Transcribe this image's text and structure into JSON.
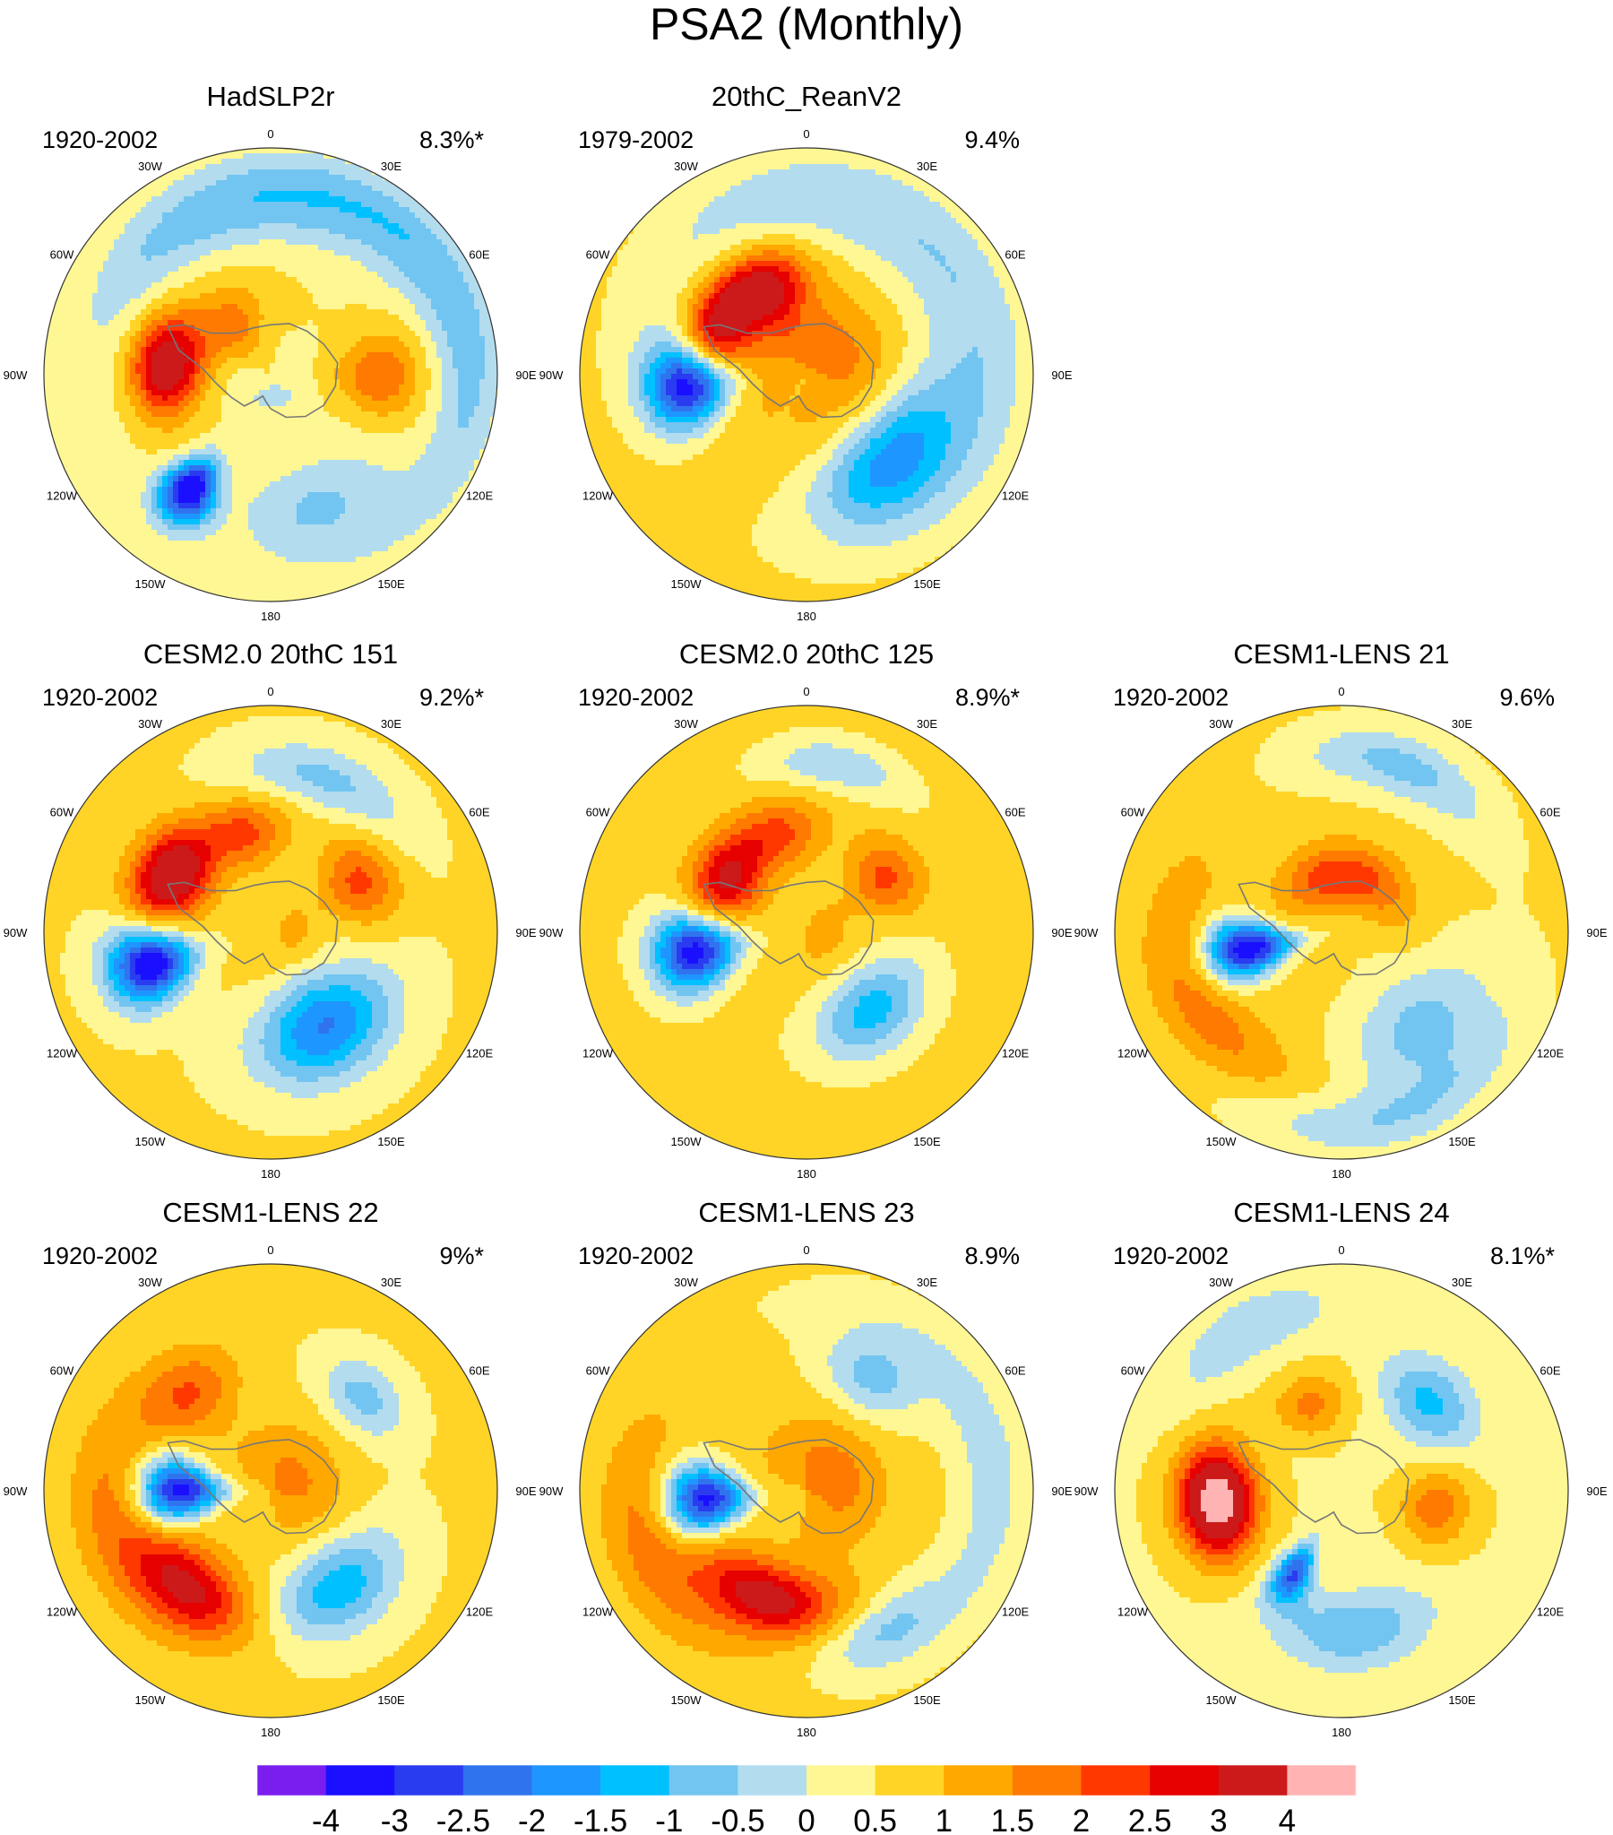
{
  "figure_title": "PSA2 (Monthly)",
  "colors": {
    "background": "#ffffff",
    "coast": "#777777",
    "border": "#333333",
    "palette": [
      "#7a1eef",
      "#1a10ff",
      "#2a3cf0",
      "#2f74ee",
      "#1e96ff",
      "#00c0ff",
      "#72c5f0",
      "#b3dcef",
      "#fff794",
      "#ffd426",
      "#ffa800",
      "#ff7a00",
      "#ff3800",
      "#e60000",
      "#cc1a1a",
      "#ffb3b3"
    ]
  },
  "longitude_labels": [
    "0",
    "30E",
    "60E",
    "90E",
    "120E",
    "150E",
    "180",
    "150W",
    "120W",
    "90W",
    "60W",
    "30W"
  ],
  "chart_data": {
    "type": "polar contour maps",
    "colorbar": {
      "levels": [
        -4,
        -3,
        -2.5,
        -2,
        -1.5,
        -1,
        -0.5,
        0,
        0.5,
        1,
        1.5,
        2,
        2.5,
        3,
        4
      ],
      "labels": [
        "-4",
        "-3",
        "-2.5",
        "-2",
        "-1.5",
        "-1",
        "-0.5",
        "0",
        "0.5",
        "1",
        "1.5",
        "2",
        "2.5",
        "3",
        "4"
      ]
    },
    "panels": [
      {
        "title": "HadSLP2r",
        "period": "1920-2002",
        "variance": "8.3%*",
        "background": 0.5,
        "blobs": [
          {
            "lon": -145,
            "r": 0.62,
            "amp": -4.2,
            "sa": 0.13,
            "sr": 0.11
          },
          {
            "lon": -40,
            "r": 0.28,
            "amp": 1.3,
            "sa": 0.4,
            "sr": 0.12
          },
          {
            "lon": -85,
            "r": 0.46,
            "amp": 3.2,
            "sa": 0.32,
            "sr": 0.11
          },
          {
            "lon": 90,
            "r": 0.48,
            "amp": 1.5,
            "sa": 0.26,
            "sr": 0.13
          },
          {
            "lon": -10,
            "r": 0.75,
            "amp": -1.3,
            "sa": 0.85,
            "sr": 0.12
          },
          {
            "lon": 70,
            "r": 0.88,
            "amp": -1.2,
            "sa": 0.9,
            "sr": 0.1
          },
          {
            "lon": 160,
            "r": 0.62,
            "amp": -1.1,
            "sa": 0.4,
            "sr": 0.15
          },
          {
            "lon": 175,
            "r": 0.1,
            "amp": -0.6,
            "sa": 1.2,
            "sr": 0.08
          }
        ]
      },
      {
        "title": "20thC_ReanV2",
        "period": "1979-2002",
        "variance": "9.4%",
        "background": 0.9,
        "blobs": [
          {
            "lon": -95,
            "r": 0.52,
            "amp": -4.4,
            "sa": 0.24,
            "sr": 0.13
          },
          {
            "lon": -25,
            "r": 0.42,
            "amp": 2.1,
            "sa": 0.32,
            "sr": 0.12
          },
          {
            "lon": -60,
            "r": 0.44,
            "amp": 2.4,
            "sa": 0.4,
            "sr": 0.1
          },
          {
            "lon": 135,
            "r": 0.52,
            "amp": -2.4,
            "sa": 0.5,
            "sr": 0.15
          },
          {
            "lon": 45,
            "r": 0.78,
            "amp": -1.4,
            "sa": 1.6,
            "sr": 0.18
          },
          {
            "lon": 30,
            "r": 0.15,
            "amp": 0.9,
            "sa": 1.5,
            "sr": 0.14
          }
        ]
      },
      {
        "title": "CESM2.0 20thC 151",
        "period": "1920-2002",
        "variance": "9.2%*",
        "background": 0.55,
        "blobs": [
          {
            "lon": -105,
            "r": 0.55,
            "amp": -4.2,
            "sa": 0.2,
            "sr": 0.13
          },
          {
            "lon": -60,
            "r": 0.5,
            "amp": 3.3,
            "sa": 0.3,
            "sr": 0.12
          },
          {
            "lon": 150,
            "r": 0.48,
            "amp": -2.6,
            "sa": 0.45,
            "sr": 0.16
          },
          {
            "lon": -15,
            "r": 0.45,
            "amp": 1.6,
            "sa": 0.3,
            "sr": 0.11
          },
          {
            "lon": 60,
            "r": 0.45,
            "amp": 1.6,
            "sa": 0.3,
            "sr": 0.12
          },
          {
            "lon": 20,
            "r": 0.72,
            "amp": -1.2,
            "sa": 0.4,
            "sr": 0.1
          },
          {
            "lon": 100,
            "r": 0.1,
            "amp": 0.6,
            "sa": 1.2,
            "sr": 0.08
          }
        ]
      },
      {
        "title": "CESM2.0 20thC 125",
        "period": "1920-2002",
        "variance": "8.9%*",
        "background": 0.65,
        "blobs": [
          {
            "lon": -100,
            "r": 0.5,
            "amp": -4.0,
            "sa": 0.22,
            "sr": 0.13
          },
          {
            "lon": -55,
            "r": 0.42,
            "amp": 2.5,
            "sa": 0.32,
            "sr": 0.11
          },
          {
            "lon": 140,
            "r": 0.45,
            "amp": -1.9,
            "sa": 0.42,
            "sr": 0.13
          },
          {
            "lon": -15,
            "r": 0.45,
            "amp": 1.4,
            "sa": 0.3,
            "sr": 0.11
          },
          {
            "lon": 55,
            "r": 0.42,
            "amp": 1.5,
            "sa": 0.28,
            "sr": 0.11
          },
          {
            "lon": 10,
            "r": 0.75,
            "amp": -1.1,
            "sa": 0.3,
            "sr": 0.08
          },
          {
            "lon": 100,
            "r": 0.05,
            "amp": 0.7,
            "sa": 1.2,
            "sr": 0.1
          }
        ]
      },
      {
        "title": "CESM1-LENS 21",
        "period": "1920-2002",
        "variance": "9.6%",
        "background": 0.6,
        "blobs": [
          {
            "lon": -100,
            "r": 0.42,
            "amp": -4.2,
            "sa": 0.2,
            "sr": 0.14
          },
          {
            "lon": -20,
            "r": 0.25,
            "amp": 1.4,
            "sa": 0.6,
            "sr": 0.1
          },
          {
            "lon": 35,
            "r": 0.25,
            "amp": 1.1,
            "sa": 0.6,
            "sr": 0.1
          },
          {
            "lon": -115,
            "r": 0.7,
            "amp": 1.3,
            "sa": 0.6,
            "sr": 0.13
          },
          {
            "lon": 140,
            "r": 0.55,
            "amp": -1.3,
            "sa": 0.45,
            "sr": 0.18
          },
          {
            "lon": 20,
            "r": 0.78,
            "amp": -1.3,
            "sa": 0.4,
            "sr": 0.1
          },
          {
            "lon": 170,
            "r": 0.85,
            "amp": -1.0,
            "sa": 0.6,
            "sr": 0.1
          }
        ]
      },
      {
        "title": "CESM1-LENS 22",
        "period": "1920-2002",
        "variance": "9%*",
        "background": 0.55,
        "blobs": [
          {
            "lon": -90,
            "r": 0.4,
            "amp": -4.0,
            "sa": 0.22,
            "sr": 0.13
          },
          {
            "lon": -40,
            "r": 0.55,
            "amp": 1.4,
            "sa": 0.28,
            "sr": 0.12
          },
          {
            "lon": 45,
            "r": 0.58,
            "amp": -1.3,
            "sa": 0.25,
            "sr": 0.1
          },
          {
            "lon": 145,
            "r": 0.52,
            "amp": -1.9,
            "sa": 0.4,
            "sr": 0.14
          },
          {
            "lon": -140,
            "r": 0.55,
            "amp": 2.4,
            "sa": 0.38,
            "sr": 0.12
          },
          {
            "lon": 60,
            "r": 0.1,
            "amp": 1.1,
            "sa": 1.5,
            "sr": 0.16
          },
          {
            "lon": -100,
            "r": 0.7,
            "amp": 1.2,
            "sa": 0.6,
            "sr": 0.13
          }
        ]
      },
      {
        "title": "CESM1-LENS 23",
        "period": "1920-2002",
        "variance": "8.9%",
        "background": 0.6,
        "blobs": [
          {
            "lon": -95,
            "r": 0.45,
            "amp": -4.0,
            "sa": 0.22,
            "sr": 0.13
          },
          {
            "lon": -160,
            "r": 0.5,
            "amp": 2.7,
            "sa": 0.45,
            "sr": 0.11
          },
          {
            "lon": 30,
            "r": 0.58,
            "amp": -1.3,
            "sa": 0.28,
            "sr": 0.12
          },
          {
            "lon": 150,
            "r": 0.7,
            "amp": -1.1,
            "sa": 0.3,
            "sr": 0.1
          },
          {
            "lon": 60,
            "r": 0.12,
            "amp": 1.2,
            "sa": 1.5,
            "sr": 0.16
          },
          {
            "lon": -110,
            "r": 0.72,
            "amp": 1.3,
            "sa": 0.55,
            "sr": 0.13
          },
          {
            "lon": 80,
            "r": 0.82,
            "amp": -0.9,
            "sa": 0.8,
            "sr": 0.1
          }
        ]
      },
      {
        "title": "CESM1-LENS 24",
        "period": "1920-2002",
        "variance": "8.1%*",
        "background": 0.45,
        "blobs": [
          {
            "lon": -150,
            "r": 0.42,
            "amp": -3.0,
            "sa": 0.13,
            "sr": 0.1
          },
          {
            "lon": -95,
            "r": 0.55,
            "amp": 4.3,
            "sa": 0.3,
            "sr": 0.12
          },
          {
            "lon": 45,
            "r": 0.55,
            "amp": -1.6,
            "sa": 0.3,
            "sr": 0.12
          },
          {
            "lon": 175,
            "r": 0.62,
            "amp": -1.4,
            "sa": 0.4,
            "sr": 0.12
          },
          {
            "lon": 100,
            "r": 0.42,
            "amp": 1.4,
            "sa": 0.28,
            "sr": 0.11
          },
          {
            "lon": -20,
            "r": 0.4,
            "amp": 1.2,
            "sa": 0.28,
            "sr": 0.1
          },
          {
            "lon": -30,
            "r": 0.82,
            "amp": -0.9,
            "sa": 0.35,
            "sr": 0.1
          }
        ]
      }
    ]
  }
}
